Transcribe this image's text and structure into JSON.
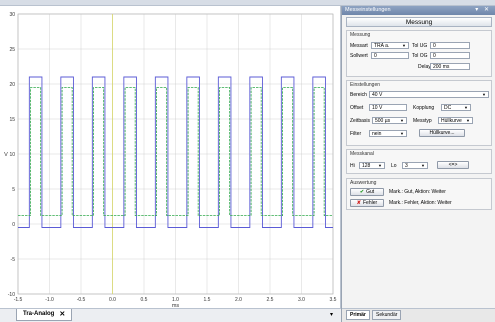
{
  "plot": {
    "y_ticks": [
      "30",
      "25",
      "20",
      "15",
      "10",
      "5",
      "0",
      "-5",
      "-10"
    ],
    "x_ticks": [
      "-1.5",
      "-1.0",
      "-0.5",
      "0.0",
      "0.5",
      "1.0",
      "1.5",
      "2.0",
      "2.5",
      "3.0",
      "3.5"
    ],
    "x_unit": "ms",
    "y_unit": "V",
    "colors": {
      "blue": "#5b5bd6",
      "green": "#2ea84a",
      "cursor": "#d9d96a",
      "grid": "#c8c8c8"
    }
  },
  "chart_data": {
    "type": "line",
    "xlim": [
      -1.5,
      3.5
    ],
    "ylim": [
      -10,
      30
    ],
    "series": [
      {
        "name": "",
        "color": "#5b5bd6",
        "x": [
          -1.5,
          -1.32,
          -1.32,
          -1.12,
          -1.12,
          -0.82,
          -0.82,
          -0.62,
          -0.62,
          -0.32,
          -0.32,
          -0.12,
          -0.12,
          0.18,
          0.18,
          0.38,
          0.38,
          0.68,
          0.68,
          0.88,
          0.88,
          1.18,
          1.18,
          1.38,
          1.38,
          1.68,
          1.68,
          1.88,
          1.88,
          2.18,
          2.18,
          2.38,
          2.38,
          2.68,
          2.68,
          2.88,
          2.88,
          3.18,
          3.18,
          3.38,
          3.38,
          3.5
        ],
        "y": [
          -0.5,
          -0.5,
          21,
          21,
          -0.5,
          -0.5,
          21,
          21,
          -0.5,
          -0.5,
          21,
          21,
          -0.5,
          -0.5,
          21,
          21,
          -0.5,
          -0.5,
          21,
          21,
          -0.5,
          -0.5,
          21,
          21,
          -0.5,
          -0.5,
          21,
          21,
          -0.5,
          -0.5,
          21,
          21,
          -0.5,
          -0.5,
          21,
          21,
          -0.5,
          -0.5,
          21,
          21,
          -0.5,
          -0.5
        ]
      },
      {
        "name": "",
        "color": "#2ea84a",
        "x": [
          -1.5,
          -1.3,
          -1.3,
          -1.14,
          -1.14,
          -0.8,
          -0.8,
          -0.64,
          -0.64,
          -0.3,
          -0.3,
          -0.14,
          -0.14,
          0.2,
          0.2,
          0.36,
          0.36,
          0.7,
          0.7,
          0.86,
          0.86,
          1.2,
          1.2,
          1.36,
          1.36,
          1.7,
          1.7,
          1.86,
          1.86,
          2.2,
          2.2,
          2.36,
          2.36,
          2.7,
          2.7,
          2.86,
          2.86,
          3.2,
          3.2,
          3.36,
          3.36,
          3.5
        ],
        "y": [
          1.2,
          1.2,
          19.5,
          19.5,
          1.2,
          1.2,
          19.5,
          19.5,
          1.2,
          1.2,
          19.5,
          19.5,
          1.2,
          1.2,
          19.5,
          19.5,
          1.2,
          1.2,
          19.5,
          19.5,
          1.2,
          1.2,
          19.5,
          19.5,
          1.2,
          1.2,
          19.5,
          19.5,
          1.2,
          1.2,
          19.5,
          19.5,
          1.2,
          1.2,
          19.5,
          19.5,
          1.2,
          1.2,
          19.5,
          19.5,
          1.2,
          1.2
        ]
      }
    ],
    "cursor_x": 0.0,
    "xlabel": "ms",
    "ylabel": "V",
    "grid": true
  },
  "bottom_tab": {
    "label": "Tra-Analog",
    "close": "✕"
  },
  "panel": {
    "title": "Messeinstellungen",
    "controls": "▾ ✕",
    "header": "Messung",
    "messung": {
      "title": "Messung",
      "messart_label": "Messart",
      "messart_value": "TRA a.",
      "tol_ug_label": "Tol UG",
      "tol_ug_value": "0",
      "sollwert_label": "Sollwert",
      "sollwert_value": "0",
      "tol_og_label": "Tol OG",
      "tol_og_value": "0",
      "delay_label": "Delay",
      "delay_value": "200 ms"
    },
    "einstellungen": {
      "title": "Einstellungen",
      "bereich_label": "Bereich",
      "bereich_value": "40 V",
      "offset_label": "Offset",
      "offset_value": "10 V",
      "kopplung_label": "Kopplung",
      "kopplung_value": "DC",
      "zeitbasis_label": "Zeitbasis",
      "zeitbasis_value": "500 µs",
      "messtyp_label": "Messtyp",
      "messtyp_value": "Hüllkurve",
      "filter_label": "Filter",
      "filter_value": "nein",
      "huellkurve_button": "Hüllkurve..."
    },
    "messkanal": {
      "title": "Messkanal",
      "hi_label": "Hi",
      "hi_value": "128",
      "lo_label": "Lo",
      "lo_value": "3",
      "swap_button": "<=>"
    },
    "auswertung": {
      "title": "Auswertung",
      "gut_button": "Gut",
      "gut_text": "Mark.: Gut, Aktion: Weiter",
      "fehler_button": "Fehler",
      "fehler_text": "Mark.: Fehler, Aktion: Weiter"
    },
    "tabs": [
      "Primär",
      "Sekundär"
    ]
  }
}
